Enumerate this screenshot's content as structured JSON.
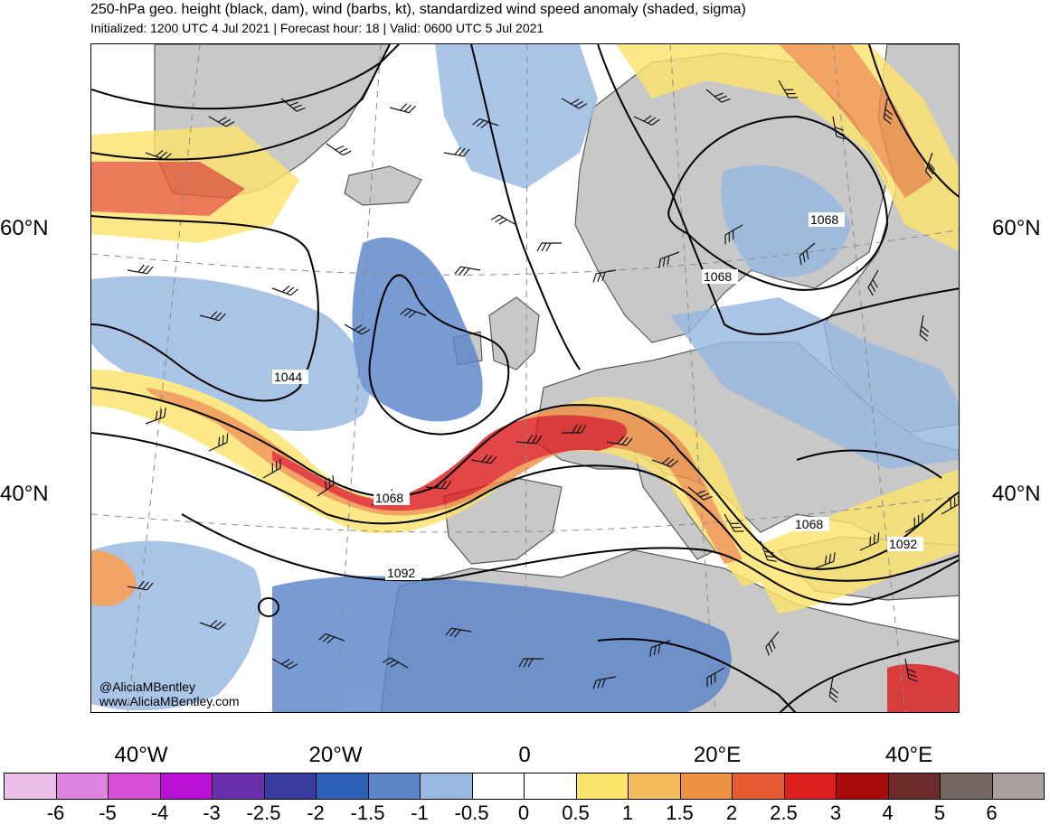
{
  "header": {
    "title": "250-hPa geo. height (black, dam), wind (barbs, kt), standardized wind speed anomaly (shaded, sigma)",
    "subtitle": "Initialized: 1200 UTC 4 Jul 2021 | Forecast hour: 18 | Valid: 0600 UTC 5 Jul 2021"
  },
  "lat_labels": {
    "left_60": "60°N",
    "right_60": "60°N",
    "left_40": "40°N",
    "right_40": "40°N"
  },
  "lon_labels": [
    "40°W",
    "20°W",
    "0",
    "20°E",
    "40°E"
  ],
  "contour_labels": [
    "1044",
    "1068",
    "1068",
    "1068",
    "1068",
    "1092",
    "1092"
  ],
  "credit": {
    "handle": "@AliciaMBentley",
    "website": "www.AliciaMBentley.com"
  },
  "colorbar": {
    "colors": [
      "#ecbfe9",
      "#e083e0",
      "#d550d6",
      "#b811d4",
      "#6b2fae",
      "#3a3b9f",
      "#2d5fb8",
      "#5b86ca",
      "#98b8e0",
      "#ffffff",
      "#ffffff",
      "#fce36c",
      "#f2bb5b",
      "#ee9142",
      "#e85c35",
      "#dc1e1e",
      "#a90b0b",
      "#6e2a2a",
      "#746560",
      "#a8a19e"
    ],
    "labels": [
      "-6",
      "-5",
      "-4",
      "-3",
      "-2.5",
      "-2",
      "-1.5",
      "-1",
      "-0.5",
      "0",
      "0.5",
      "1",
      "1.5",
      "2",
      "2.5",
      "3",
      "4",
      "5",
      "6"
    ]
  },
  "fill_colors": {
    "land": "#c8c8c8",
    "coast": "#5a5a5a",
    "anom_pos": "#fce36c",
    "anom_neg": "#98b8e0"
  }
}
